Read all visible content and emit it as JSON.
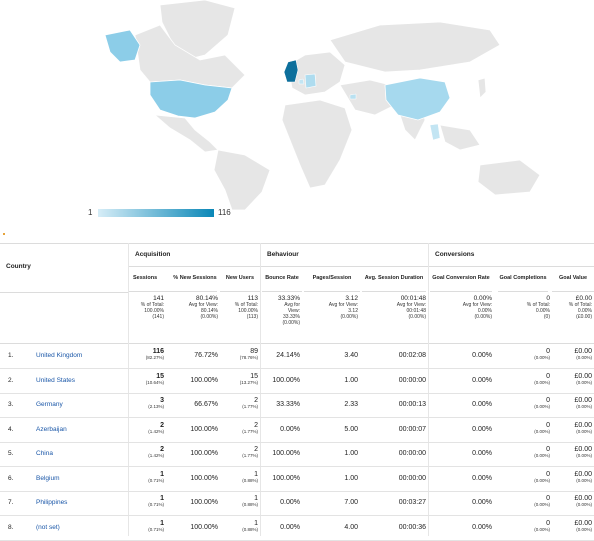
{
  "legend": {
    "min": "1",
    "max": "116"
  },
  "table": {
    "country_header": "Country",
    "groups": {
      "acquisition": "Acquisition",
      "behaviour": "Behaviour",
      "conversions": "Conversions"
    },
    "columns": {
      "sessions": "Sessions",
      "new_sessions": "% New Sessions",
      "new_users": "New Users",
      "bounce_rate": "Bounce Rate",
      "pages_session": "Pages/Session",
      "avg_duration": "Avg. Session Duration",
      "goal_conv": "Goal Conversion Rate",
      "goal_comp": "Goal Completions",
      "goal_value": "Goal Value"
    },
    "totals": {
      "sessions": "141",
      "sessions_sub": "% of Total:",
      "sessions_sub2": "100.00%",
      "sessions_sub3": "(141)",
      "new_sessions": "80.14%",
      "new_sessions_sub": "Avg for View:",
      "new_sessions_sub2": "80.14%",
      "new_sessions_sub3": "(0.00%)",
      "new_users": "113",
      "new_users_sub": "% of Total:",
      "new_users_sub2": "100.00%",
      "new_users_sub3": "(113)",
      "bounce_rate": "33.33%",
      "bounce_sub": "Avg for",
      "bounce_sub2": "View:",
      "bounce_sub3": "33.33%",
      "bounce_sub4": "(0.00%)",
      "pages_session": "3.12",
      "pages_sub": "Avg for View:",
      "pages_sub2": "3.12",
      "pages_sub3": "(0.00%)",
      "avg_duration": "00:01:48",
      "dur_sub": "Avg for View:",
      "dur_sub2": "00:01:48",
      "dur_sub3": "(0.00%)",
      "goal_conv": "0.00%",
      "gc_sub": "Avg for View:",
      "gc_sub2": "0.00%",
      "gc_sub3": "(0.00%)",
      "goal_comp": "0",
      "gcomp_sub": "% of Total:",
      "gcomp_sub2": "0.00%",
      "gcomp_sub3": "(0)",
      "goal_value": "£0.00",
      "gv_sub": "% of Total:",
      "gv_sub2": "0.00%",
      "gv_sub3": "(£0.00)"
    },
    "rows": [
      {
        "n": "1.",
        "country": "United Kingdom",
        "sessions": "116",
        "sessions_pct": "(82.27%)",
        "new_sessions": "76.72%",
        "new_users": "89",
        "new_users_pct": "(78.76%)",
        "bounce": "24.14%",
        "pages": "3.40",
        "duration": "00:02:08",
        "conv": "0.00%",
        "comp": "0",
        "comp_pct": "(0.00%)",
        "value": "£0.00",
        "value_pct": "(0.00%)"
      },
      {
        "n": "2.",
        "country": "United States",
        "sessions": "15",
        "sessions_pct": "(10.64%)",
        "new_sessions": "100.00%",
        "new_users": "15",
        "new_users_pct": "(13.27%)",
        "bounce": "100.00%",
        "pages": "1.00",
        "duration": "00:00:00",
        "conv": "0.00%",
        "comp": "0",
        "comp_pct": "(0.00%)",
        "value": "£0.00",
        "value_pct": "(0.00%)"
      },
      {
        "n": "3.",
        "country": "Germany",
        "sessions": "3",
        "sessions_pct": "(2.13%)",
        "new_sessions": "66.67%",
        "new_users": "2",
        "new_users_pct": "(1.77%)",
        "bounce": "33.33%",
        "pages": "2.33",
        "duration": "00:00:13",
        "conv": "0.00%",
        "comp": "0",
        "comp_pct": "(0.00%)",
        "value": "£0.00",
        "value_pct": "(0.00%)"
      },
      {
        "n": "4.",
        "country": "Azerbaijan",
        "sessions": "2",
        "sessions_pct": "(1.42%)",
        "new_sessions": "100.00%",
        "new_users": "2",
        "new_users_pct": "(1.77%)",
        "bounce": "0.00%",
        "pages": "5.00",
        "duration": "00:00:07",
        "conv": "0.00%",
        "comp": "0",
        "comp_pct": "(0.00%)",
        "value": "£0.00",
        "value_pct": "(0.00%)"
      },
      {
        "n": "5.",
        "country": "China",
        "sessions": "2",
        "sessions_pct": "(1.42%)",
        "new_sessions": "100.00%",
        "new_users": "2",
        "new_users_pct": "(1.77%)",
        "bounce": "100.00%",
        "pages": "1.00",
        "duration": "00:00:00",
        "conv": "0.00%",
        "comp": "0",
        "comp_pct": "(0.00%)",
        "value": "£0.00",
        "value_pct": "(0.00%)"
      },
      {
        "n": "6.",
        "country": "Belgium",
        "sessions": "1",
        "sessions_pct": "(0.71%)",
        "new_sessions": "100.00%",
        "new_users": "1",
        "new_users_pct": "(0.88%)",
        "bounce": "100.00%",
        "pages": "1.00",
        "duration": "00:00:00",
        "conv": "0.00%",
        "comp": "0",
        "comp_pct": "(0.00%)",
        "value": "£0.00",
        "value_pct": "(0.00%)"
      },
      {
        "n": "7.",
        "country": "Philippines",
        "sessions": "1",
        "sessions_pct": "(0.71%)",
        "new_sessions": "100.00%",
        "new_users": "1",
        "new_users_pct": "(0.88%)",
        "bounce": "0.00%",
        "pages": "7.00",
        "duration": "00:03:27",
        "conv": "0.00%",
        "comp": "0",
        "comp_pct": "(0.00%)",
        "value": "£0.00",
        "value_pct": "(0.00%)"
      },
      {
        "n": "8.",
        "country": "(not set)",
        "sessions": "1",
        "sessions_pct": "(0.71%)",
        "new_sessions": "100.00%",
        "new_users": "1",
        "new_users_pct": "(0.88%)",
        "bounce": "0.00%",
        "pages": "4.00",
        "duration": "00:00:36",
        "conv": "0.00%",
        "comp": "0",
        "comp_pct": "(0.00%)",
        "value": "£0.00",
        "value_pct": "(0.00%)"
      }
    ]
  }
}
